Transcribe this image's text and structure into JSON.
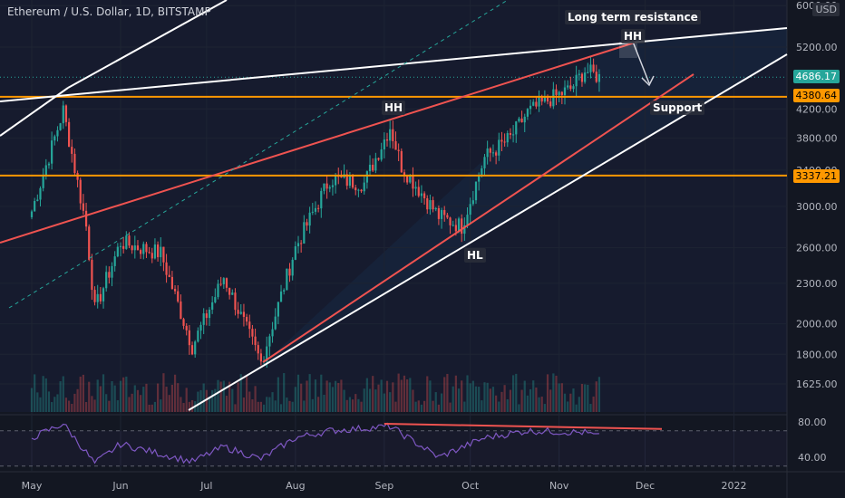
{
  "header": {
    "symbol": "Ethereum / U.S. Dollar, 1D, BITSTAMP",
    "currency": "USD"
  },
  "annotations": {
    "long_term_resistance": "Long term resistance",
    "hh_top": "HH",
    "hh_mid": "HH",
    "hl": "HL",
    "support": "Support"
  },
  "price_tags": {
    "last": "4686.17",
    "level_upper": "4380.64",
    "level_lower": "3337.21"
  },
  "colors": {
    "bull": "#26a69a",
    "bear": "#ef5350",
    "level": "#ff9800",
    "trend": "#ef5350",
    "channel": "#ffffff",
    "rsi": "#7e57c2",
    "last_tag": "#26a69a"
  },
  "chart_data": {
    "type": "candlestick",
    "title": "Ethereum / U.S. Dollar, 1D, BITSTAMP",
    "y_axis": {
      "scale": "log",
      "unit": "USD",
      "range": [
        1550,
        6000
      ],
      "ticks": [
        "6000.00",
        "5200.00",
        "4200.00",
        "3800.00",
        "3400.00",
        "3000.00",
        "2600.00",
        "2300.00",
        "2000.00",
        "1800.00",
        "1625.00"
      ]
    },
    "x_axis": {
      "ticks": [
        "May",
        "Jun",
        "Jul",
        "Aug",
        "Sep",
        "Oct",
        "Nov",
        "Dec",
        "2022"
      ]
    },
    "keypoints_close": [
      [
        "2021-05-01",
        2950
      ],
      [
        "2021-05-12",
        4180
      ],
      [
        "2021-05-20",
        2800
      ],
      [
        "2021-05-23",
        2100
      ],
      [
        "2021-06-01",
        2650
      ],
      [
        "2021-06-15",
        2550
      ],
      [
        "2021-06-26",
        1850
      ],
      [
        "2021-07-07",
        2350
      ],
      [
        "2021-07-20",
        1750
      ],
      [
        "2021-08-01",
        2600
      ],
      [
        "2021-08-13",
        3300
      ],
      [
        "2021-08-25",
        3250
      ],
      [
        "2021-09-03",
        3950
      ],
      [
        "2021-09-07",
        3450
      ],
      [
        "2021-09-20",
        2900
      ],
      [
        "2021-09-28",
        2800
      ],
      [
        "2021-10-06",
        3550
      ],
      [
        "2021-10-15",
        3800
      ],
      [
        "2021-10-21",
        4150
      ],
      [
        "2021-10-29",
        4350
      ],
      [
        "2021-11-05",
        4500
      ],
      [
        "2021-11-10",
        4800
      ],
      [
        "2021-11-15",
        4686
      ]
    ],
    "horizontal_levels": [
      4380.64,
      3337.21
    ],
    "last_price": 4686.17,
    "rsi": {
      "ticks": [
        "80.00",
        "40.00"
      ],
      "bands": [
        70,
        30
      ],
      "keypoints": [
        [
          "2021-05-01",
          62
        ],
        [
          "2021-05-12",
          78
        ],
        [
          "2021-05-23",
          33
        ],
        [
          "2021-06-01",
          55
        ],
        [
          "2021-06-26",
          35
        ],
        [
          "2021-07-07",
          52
        ],
        [
          "2021-07-20",
          38
        ],
        [
          "2021-08-01",
          62
        ],
        [
          "2021-08-13",
          70
        ],
        [
          "2021-09-03",
          75
        ],
        [
          "2021-09-20",
          40
        ],
        [
          "2021-10-06",
          62
        ],
        [
          "2021-10-21",
          70
        ],
        [
          "2021-11-10",
          68
        ],
        [
          "2021-11-15",
          63
        ]
      ]
    }
  }
}
